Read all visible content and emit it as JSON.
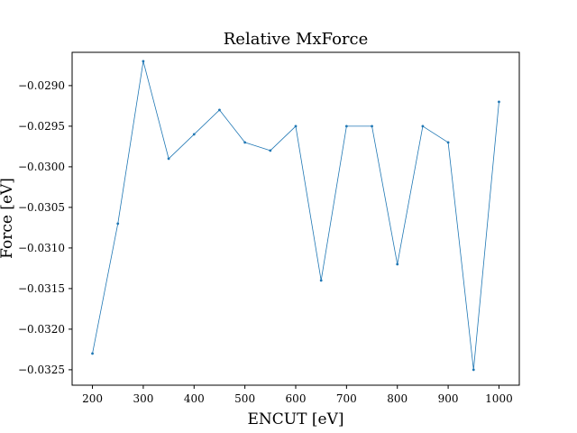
{
  "chart_data": {
    "type": "line",
    "title": "Relative MxForce",
    "xlabel": "ENCUT [eV]",
    "ylabel": "Force [eV]",
    "x": [
      200,
      250,
      300,
      350,
      400,
      450,
      500,
      550,
      600,
      650,
      700,
      750,
      800,
      850,
      900,
      950,
      1000
    ],
    "series": [
      {
        "values": [
          -0.0323,
          -0.0307,
          -0.0287,
          -0.0299,
          -0.0296,
          -0.0293,
          -0.0297,
          -0.0298,
          -0.0295,
          -0.0314,
          -0.0295,
          -0.0295,
          -0.0312,
          -0.0295,
          -0.0297,
          -0.0325,
          -0.0292
        ]
      }
    ],
    "xlim": [
      160,
      1040
    ],
    "ylim": [
      -0.03269,
      -0.02859
    ],
    "xticks": [
      200,
      300,
      400,
      500,
      600,
      700,
      800,
      900,
      1000
    ],
    "xtick_labels": [
      "200",
      "300",
      "400",
      "500",
      "600",
      "700",
      "800",
      "900",
      "1000"
    ],
    "yticks": [
      -0.029,
      -0.0295,
      -0.03,
      -0.0305,
      -0.031,
      -0.0315,
      -0.032,
      -0.0325
    ],
    "ytick_labels": [
      "−0.0290",
      "−0.0295",
      "−0.0300",
      "−0.0305",
      "−0.0310",
      "−0.0315",
      "−0.0320",
      "−0.0325"
    ],
    "grid": false,
    "line_color": "#1f77b4"
  }
}
